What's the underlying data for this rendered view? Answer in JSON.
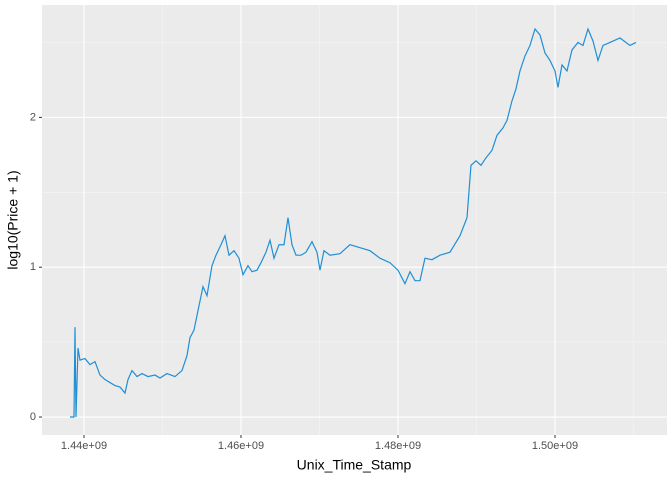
{
  "chart_data": {
    "type": "line",
    "x_label": "Unix_Time_Stamp",
    "y_label": "log10(Price + 1)",
    "xlim": [
      1434650000,
      1514270000
    ],
    "ylim": [
      -0.12,
      2.75
    ],
    "xticks": [
      {
        "value": 1440000000,
        "label": "1.44e+09"
      },
      {
        "value": 1460000000,
        "label": "1.46e+09"
      },
      {
        "value": 1480000000,
        "label": "1.48e+09"
      },
      {
        "value": 1500000000,
        "label": "1.50e+09"
      }
    ],
    "yticks": [
      0,
      1,
      2
    ],
    "minor_xgrid": [
      1450000000,
      1470000000,
      1490000000,
      1510000000
    ],
    "minor_ygrid": [
      0.5,
      1.5,
      2.5
    ],
    "grid": true,
    "x": [
      1438216000,
      1438726000,
      1438853000,
      1438981000,
      1439236000,
      1439490000,
      1440127000,
      1440764000,
      1441401000,
      1442038000,
      1442675000,
      1443312000,
      1443949000,
      1444586000,
      1445223000,
      1445605000,
      1446115000,
      1446752000,
      1447389000,
      1448153000,
      1449045000,
      1449682000,
      1450573000,
      1451592000,
      1452484000,
      1453121000,
      1453503000,
      1454013000,
      1454522000,
      1455159000,
      1455669000,
      1456306000,
      1456815000,
      1457452000,
      1457962000,
      1458471000,
      1459108000,
      1459745000,
      1460255000,
      1460892000,
      1461401000,
      1462038000,
      1462548000,
      1463185000,
      1463694000,
      1464204000,
      1464841000,
      1465478000,
      1465987000,
      1466497000,
      1467006000,
      1467643000,
      1468280000,
      1469045000,
      1469682000,
      1470064000,
      1470573000,
      1471338000,
      1472612000,
      1473885000,
      1475159000,
      1476433000,
      1477707000,
      1478981000,
      1480000000,
      1480892000,
      1481529000,
      1482166000,
      1482803000,
      1483439000,
      1484331000,
      1485350000,
      1486624000,
      1487898000,
      1488790000,
      1489299000,
      1489936000,
      1490573000,
      1491210000,
      1491975000,
      1492612000,
      1493376000,
      1493885000,
      1494522000,
      1495032000,
      1495541000,
      1496178000,
      1496815000,
      1497452000,
      1498089000,
      1498726000,
      1499363000,
      1500000000,
      1500382000,
      1500892000,
      1501529000,
      1502166000,
      1502930000,
      1503567000,
      1504204000,
      1504841000,
      1505478000,
      1506115000,
      1507006000,
      1508280000,
      1509554000,
      1510318000
    ],
    "series": [
      {
        "color": "#1f8fd6",
        "values": [
          0,
          0,
          0.6,
          0,
          0.46,
          0.38,
          0.39,
          0.35,
          0.37,
          0.28,
          0.25,
          0.23,
          0.21,
          0.2,
          0.16,
          0.25,
          0.31,
          0.27,
          0.29,
          0.27,
          0.28,
          0.26,
          0.29,
          0.27,
          0.31,
          0.41,
          0.53,
          0.58,
          0.71,
          0.87,
          0.81,
          1.01,
          1.08,
          1.15,
          1.21,
          1.08,
          1.11,
          1.06,
          0.95,
          1.01,
          0.97,
          0.98,
          1.03,
          1.1,
          1.18,
          1.06,
          1.15,
          1.15,
          1.33,
          1.15,
          1.08,
          1.08,
          1.1,
          1.17,
          1.1,
          0.98,
          1.11,
          1.08,
          1.09,
          1.15,
          1.13,
          1.11,
          1.06,
          1.03,
          0.98,
          0.89,
          0.97,
          0.91,
          0.91,
          1.06,
          1.05,
          1.08,
          1.1,
          1.21,
          1.33,
          1.68,
          1.71,
          1.68,
          1.73,
          1.78,
          1.88,
          1.93,
          1.98,
          2.11,
          2.19,
          2.31,
          2.41,
          2.48,
          2.59,
          2.55,
          2.43,
          2.38,
          2.31,
          2.2,
          2.35,
          2.31,
          2.45,
          2.5,
          2.48,
          2.59,
          2.51,
          2.38,
          2.48,
          2.5,
          2.53,
          2.48,
          2.5
        ]
      }
    ]
  }
}
